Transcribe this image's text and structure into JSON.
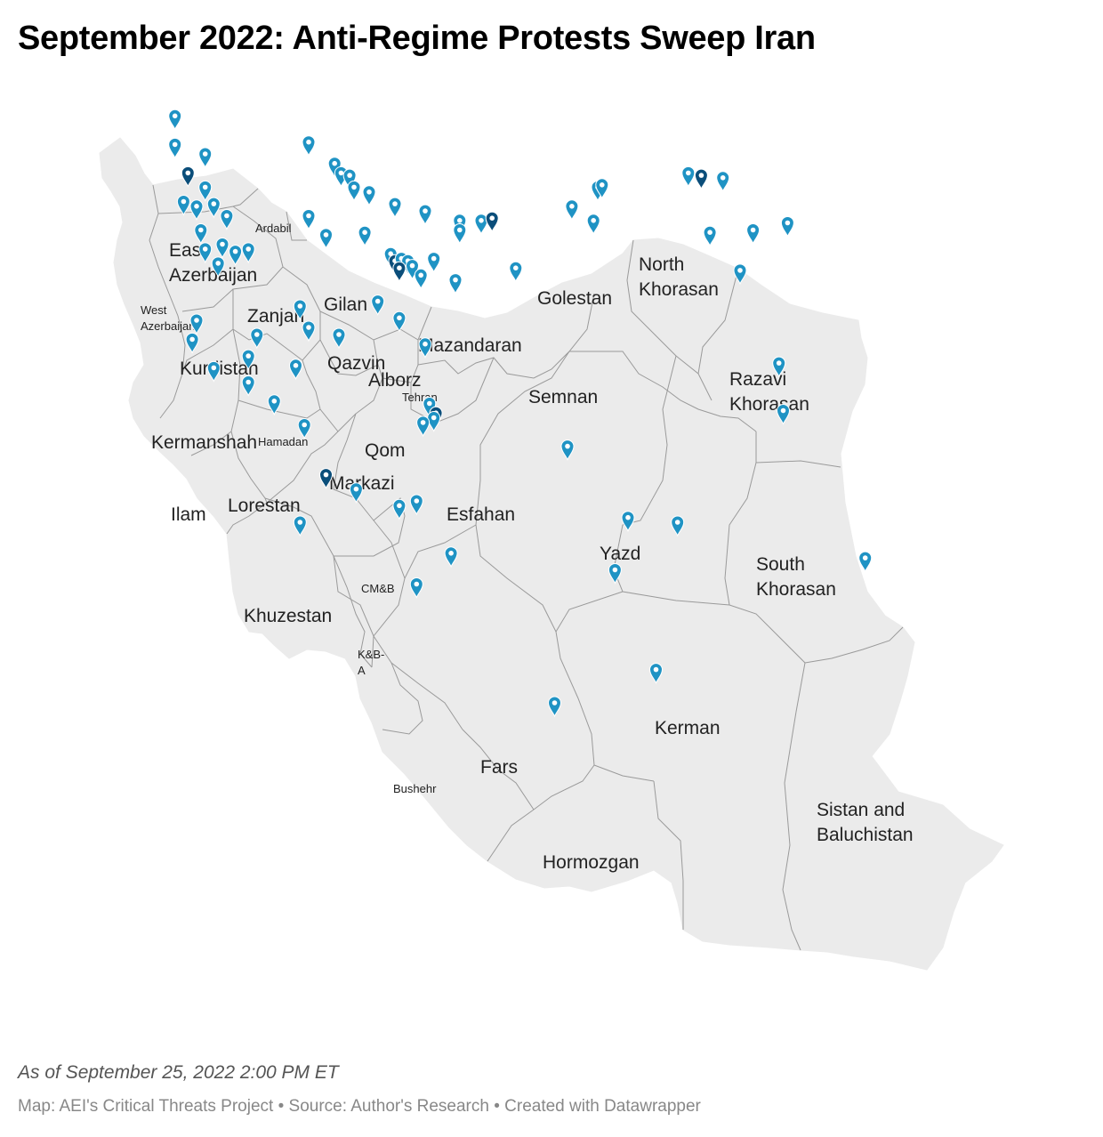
{
  "title": "September 2022: Anti-Regime Protests Sweep Iran",
  "footnote": "As of September 25, 2022 2:00 PM ET",
  "credits": "Map: AEI's Critical Threats Project • Source: Author's Research • Created with Datawrapper",
  "colors": {
    "land": "#ebebeb",
    "border": "#9a9a9a",
    "marker_light": "#1f93c4",
    "marker_dark": "#0b4e7a"
  },
  "icons": {
    "marker": "map-pin-icon"
  },
  "regions": [
    {
      "name": "East Azerbaijan",
      "lines": [
        "East",
        "Azerbaijan"
      ],
      "size": "big"
    },
    {
      "name": "Ardabil",
      "lines": [
        "Ardabil"
      ],
      "size": "small"
    },
    {
      "name": "West Azerbaijan",
      "lines": [
        "West",
        "Azerbaijan"
      ],
      "size": "small"
    },
    {
      "name": "Zanjan",
      "lines": [
        "Zanjan"
      ],
      "size": "big"
    },
    {
      "name": "Gilan",
      "lines": [
        "Gilan"
      ],
      "size": "big"
    },
    {
      "name": "Kurdistan",
      "lines": [
        "Kurdistan"
      ],
      "size": "big"
    },
    {
      "name": "Qazvin",
      "lines": [
        "Qazvin"
      ],
      "size": "big"
    },
    {
      "name": "Alborz",
      "lines": [
        "Alborz"
      ],
      "size": "big"
    },
    {
      "name": "Tehran",
      "lines": [
        "Tehran"
      ],
      "size": "small"
    },
    {
      "name": "Mazandaran",
      "lines": [
        "Mazandaran"
      ],
      "size": "big"
    },
    {
      "name": "Golestan",
      "lines": [
        "Golestan"
      ],
      "size": "big"
    },
    {
      "name": "North Khorasan",
      "lines": [
        "North",
        "Khorasan"
      ],
      "size": "big"
    },
    {
      "name": "Semnan",
      "lines": [
        "Semnan"
      ],
      "size": "big"
    },
    {
      "name": "Razavi Khorasan",
      "lines": [
        "Razavi",
        "Khorasan"
      ],
      "size": "big"
    },
    {
      "name": "Kermanshah",
      "lines": [
        "Kermanshah"
      ],
      "size": "big"
    },
    {
      "name": "Hamadan",
      "lines": [
        "Hamadan"
      ],
      "size": "small"
    },
    {
      "name": "Qom",
      "lines": [
        "Qom"
      ],
      "size": "big"
    },
    {
      "name": "Markazi",
      "lines": [
        "Markazi"
      ],
      "size": "big"
    },
    {
      "name": "Ilam",
      "lines": [
        "Ilam"
      ],
      "size": "big"
    },
    {
      "name": "Lorestan",
      "lines": [
        "Lorestan"
      ],
      "size": "big"
    },
    {
      "name": "Esfahan",
      "lines": [
        "Esfahan"
      ],
      "size": "big"
    },
    {
      "name": "Yazd",
      "lines": [
        "Yazd"
      ],
      "size": "big"
    },
    {
      "name": "South Khorasan",
      "lines": [
        "South",
        "Khorasan"
      ],
      "size": "big"
    },
    {
      "name": "CM&B",
      "lines": [
        "CM&B"
      ],
      "size": "small"
    },
    {
      "name": "Khuzestan",
      "lines": [
        "Khuzestan"
      ],
      "size": "big"
    },
    {
      "name": "K&B-A",
      "lines": [
        "K&B-",
        "A"
      ],
      "size": "small"
    },
    {
      "name": "Kerman",
      "lines": [
        "Kerman"
      ],
      "size": "big"
    },
    {
      "name": "Fars",
      "lines": [
        "Fars"
      ],
      "size": "big"
    },
    {
      "name": "Bushehr",
      "lines": [
        "Bushehr"
      ],
      "size": "small"
    },
    {
      "name": "Sistan and Baluchistan",
      "lines": [
        "Sistan and",
        "Baluchistan"
      ],
      "size": "big"
    },
    {
      "name": "Hormozgan",
      "lines": [
        "Hormozgan"
      ],
      "size": "big"
    }
  ],
  "protest_locations": [
    {
      "lon": 45.2,
      "lat": 38.8,
      "tone": "light"
    },
    {
      "lon": 45.2,
      "lat": 38.2,
      "tone": "light"
    },
    {
      "lon": 45.9,
      "lat": 38.0,
      "tone": "light"
    },
    {
      "lon": 45.5,
      "lat": 37.6,
      "tone": "dark"
    },
    {
      "lon": 45.9,
      "lat": 37.3,
      "tone": "light"
    },
    {
      "lon": 45.4,
      "lat": 37.0,
      "tone": "light"
    },
    {
      "lon": 45.7,
      "lat": 36.9,
      "tone": "light"
    },
    {
      "lon": 46.1,
      "lat": 36.95,
      "tone": "light"
    },
    {
      "lon": 46.4,
      "lat": 36.7,
      "tone": "light"
    },
    {
      "lon": 45.8,
      "lat": 36.4,
      "tone": "light"
    },
    {
      "lon": 45.9,
      "lat": 36.0,
      "tone": "light"
    },
    {
      "lon": 46.3,
      "lat": 36.1,
      "tone": "light"
    },
    {
      "lon": 46.6,
      "lat": 35.95,
      "tone": "light"
    },
    {
      "lon": 46.9,
      "lat": 36.0,
      "tone": "light"
    },
    {
      "lon": 46.2,
      "lat": 35.7,
      "tone": "light"
    },
    {
      "lon": 45.7,
      "lat": 34.5,
      "tone": "light"
    },
    {
      "lon": 45.6,
      "lat": 34.1,
      "tone": "light"
    },
    {
      "lon": 46.1,
      "lat": 33.5,
      "tone": "light"
    },
    {
      "lon": 46.9,
      "lat": 33.2,
      "tone": "light"
    },
    {
      "lon": 48.3,
      "lat": 38.25,
      "tone": "light"
    },
    {
      "lon": 48.9,
      "lat": 37.8,
      "tone": "light"
    },
    {
      "lon": 49.05,
      "lat": 37.6,
      "tone": "light"
    },
    {
      "lon": 49.25,
      "lat": 37.55,
      "tone": "light"
    },
    {
      "lon": 49.35,
      "lat": 37.3,
      "tone": "light"
    },
    {
      "lon": 49.7,
      "lat": 37.2,
      "tone": "light"
    },
    {
      "lon": 48.3,
      "lat": 36.7,
      "tone": "light"
    },
    {
      "lon": 48.7,
      "lat": 36.3,
      "tone": "light"
    },
    {
      "lon": 49.6,
      "lat": 36.35,
      "tone": "light"
    },
    {
      "lon": 50.3,
      "lat": 36.95,
      "tone": "light"
    },
    {
      "lon": 51.0,
      "lat": 36.8,
      "tone": "light"
    },
    {
      "lon": 51.8,
      "lat": 36.6,
      "tone": "light"
    },
    {
      "lon": 51.8,
      "lat": 36.4,
      "tone": "light"
    },
    {
      "lon": 52.3,
      "lat": 36.6,
      "tone": "light"
    },
    {
      "lon": 52.55,
      "lat": 36.65,
      "tone": "dark"
    },
    {
      "lon": 50.2,
      "lat": 35.9,
      "tone": "light"
    },
    {
      "lon": 50.3,
      "lat": 35.75,
      "tone": "dark"
    },
    {
      "lon": 50.45,
      "lat": 35.8,
      "tone": "light"
    },
    {
      "lon": 50.6,
      "lat": 35.75,
      "tone": "light"
    },
    {
      "lon": 50.4,
      "lat": 35.6,
      "tone": "dark"
    },
    {
      "lon": 50.7,
      "lat": 35.65,
      "tone": "light"
    },
    {
      "lon": 51.2,
      "lat": 35.8,
      "tone": "light"
    },
    {
      "lon": 50.9,
      "lat": 35.45,
      "tone": "light"
    },
    {
      "lon": 51.7,
      "lat": 35.35,
      "tone": "light"
    },
    {
      "lon": 53.1,
      "lat": 35.6,
      "tone": "light"
    },
    {
      "lon": 48.1,
      "lat": 34.8,
      "tone": "light"
    },
    {
      "lon": 48.3,
      "lat": 34.35,
      "tone": "light"
    },
    {
      "lon": 49.0,
      "lat": 34.2,
      "tone": "light"
    },
    {
      "lon": 49.9,
      "lat": 34.9,
      "tone": "light"
    },
    {
      "lon": 50.4,
      "lat": 34.55,
      "tone": "light"
    },
    {
      "lon": 51.0,
      "lat": 34.0,
      "tone": "light"
    },
    {
      "lon": 47.1,
      "lat": 34.2,
      "tone": "light"
    },
    {
      "lon": 46.9,
      "lat": 33.75,
      "tone": "light"
    },
    {
      "lon": 48.0,
      "lat": 33.55,
      "tone": "light"
    },
    {
      "lon": 47.5,
      "lat": 32.8,
      "tone": "light"
    },
    {
      "lon": 48.2,
      "lat": 32.3,
      "tone": "light"
    },
    {
      "lon": 51.1,
      "lat": 32.75,
      "tone": "light"
    },
    {
      "lon": 51.25,
      "lat": 32.55,
      "tone": "dark"
    },
    {
      "lon": 51.2,
      "lat": 32.45,
      "tone": "light"
    },
    {
      "lon": 50.95,
      "lat": 32.35,
      "tone": "light"
    },
    {
      "lon": 48.7,
      "lat": 31.25,
      "tone": "dark"
    },
    {
      "lon": 49.4,
      "lat": 30.95,
      "tone": "light"
    },
    {
      "lon": 50.4,
      "lat": 30.6,
      "tone": "light"
    },
    {
      "lon": 50.8,
      "lat": 30.7,
      "tone": "light"
    },
    {
      "lon": 48.1,
      "lat": 30.25,
      "tone": "light"
    },
    {
      "lon": 51.6,
      "lat": 29.6,
      "tone": "light"
    },
    {
      "lon": 50.8,
      "lat": 28.95,
      "tone": "light"
    },
    {
      "lon": 54.3,
      "lat": 31.85,
      "tone": "light"
    },
    {
      "lon": 55.0,
      "lat": 37.3,
      "tone": "light"
    },
    {
      "lon": 55.1,
      "lat": 37.35,
      "tone": "light"
    },
    {
      "lon": 54.4,
      "lat": 36.9,
      "tone": "light"
    },
    {
      "lon": 54.9,
      "lat": 36.6,
      "tone": "light"
    },
    {
      "lon": 57.1,
      "lat": 37.6,
      "tone": "light"
    },
    {
      "lon": 57.4,
      "lat": 37.55,
      "tone": "dark"
    },
    {
      "lon": 57.9,
      "lat": 37.5,
      "tone": "light"
    },
    {
      "lon": 57.6,
      "lat": 36.35,
      "tone": "light"
    },
    {
      "lon": 58.6,
      "lat": 36.4,
      "tone": "light"
    },
    {
      "lon": 59.4,
      "lat": 36.55,
      "tone": "light"
    },
    {
      "lon": 58.3,
      "lat": 35.55,
      "tone": "light"
    },
    {
      "lon": 59.2,
      "lat": 33.6,
      "tone": "light"
    },
    {
      "lon": 59.3,
      "lat": 32.6,
      "tone": "light"
    },
    {
      "lon": 55.7,
      "lat": 30.35,
      "tone": "light"
    },
    {
      "lon": 56.85,
      "lat": 30.25,
      "tone": "light"
    },
    {
      "lon": 55.4,
      "lat": 29.25,
      "tone": "light"
    },
    {
      "lon": 61.2,
      "lat": 29.5,
      "tone": "light"
    },
    {
      "lon": 56.35,
      "lat": 27.15,
      "tone": "light"
    },
    {
      "lon": 54.0,
      "lat": 26.45,
      "tone": "light"
    }
  ]
}
